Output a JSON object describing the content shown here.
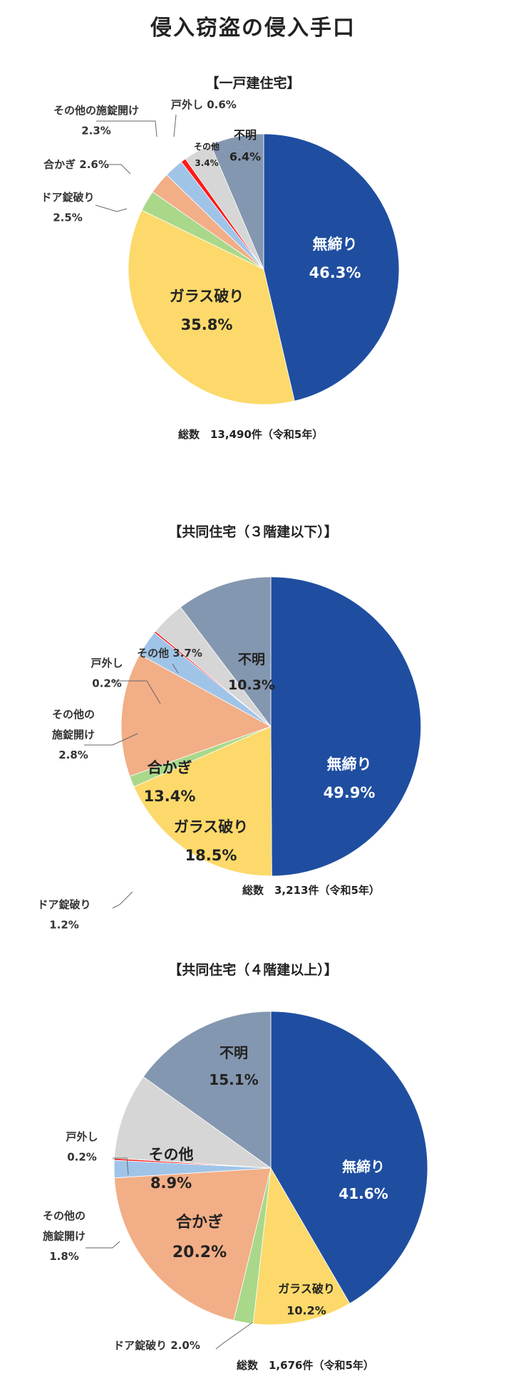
{
  "title": "侵入窃盗の侵入手口",
  "colors": {
    "無締り": "#1f4ea1",
    "ガラス破り": "#fcd96a",
    "ドア錠破り": "#a9d88a",
    "合かぎ": "#f2ae86",
    "その他の施錠開け": "#a0c4e8",
    "戸外し": "#ff1a1a",
    "その他": "#d6d6d6",
    "不明": "#8497b0"
  },
  "chart_data": [
    {
      "type": "pie",
      "title": "【一戸建住宅】",
      "total_label": "総数　13,490件（令和5年）",
      "slices": [
        {
          "name": "無締り",
          "value": 46.3
        },
        {
          "name": "ガラス破り",
          "value": 35.8
        },
        {
          "name": "ドア錠破り",
          "value": 2.5
        },
        {
          "name": "合かぎ",
          "value": 2.6
        },
        {
          "name": "その他の施錠開け",
          "value": 2.3
        },
        {
          "name": "戸外し",
          "value": 0.6
        },
        {
          "name": "その他",
          "value": 3.4
        },
        {
          "name": "不明",
          "value": 6.4
        }
      ],
      "labels": [
        {
          "lines": [
            "無締り",
            "46.3%"
          ]
        },
        {
          "lines": [
            "ガラス破り",
            "35.8%"
          ]
        },
        {
          "lines": [
            "ドア錠破り",
            "2.5%"
          ]
        },
        {
          "lines": [
            "合かぎ 2.6%"
          ]
        },
        {
          "lines": [
            "その他の施錠開け",
            "2.3%"
          ]
        },
        {
          "lines": [
            "戸外し 0.6%"
          ]
        },
        {
          "lines": [
            "その他",
            "3.4%"
          ]
        },
        {
          "lines": [
            "不明",
            "6.4%"
          ]
        }
      ]
    },
    {
      "type": "pie",
      "title": "【共同住宅（３階建以下）】",
      "total_label": "総数　3,213件（令和5年）",
      "slices": [
        {
          "name": "無締り",
          "value": 49.9
        },
        {
          "name": "ガラス破り",
          "value": 18.5
        },
        {
          "name": "ドア錠破り",
          "value": 1.2
        },
        {
          "name": "合かぎ",
          "value": 13.4
        },
        {
          "name": "その他の施錠開け",
          "value": 2.8
        },
        {
          "name": "戸外し",
          "value": 0.2
        },
        {
          "name": "その他",
          "value": 3.7
        },
        {
          "name": "不明",
          "value": 10.3
        }
      ],
      "labels": [
        {
          "lines": [
            "無締り",
            "49.9%"
          ]
        },
        {
          "lines": [
            "ガラス破り",
            "18.5%"
          ]
        },
        {
          "lines": [
            "ドア錠破り",
            "1.2%"
          ]
        },
        {
          "lines": [
            "合かぎ",
            "13.4%"
          ]
        },
        {
          "lines": [
            "その他の",
            "施錠開け",
            "2.8%"
          ]
        },
        {
          "lines": [
            "戸外し",
            "0.2%"
          ]
        },
        {
          "lines": [
            "その他 3.7%"
          ]
        },
        {
          "lines": [
            "不明",
            "10.3%"
          ]
        }
      ]
    },
    {
      "type": "pie",
      "title": "【共同住宅（４階建以上）】",
      "total_label": "総数　1,676件（令和5年）",
      "slices": [
        {
          "name": "無締り",
          "value": 41.6
        },
        {
          "name": "ガラス破り",
          "value": 10.2
        },
        {
          "name": "ドア錠破り",
          "value": 2.0
        },
        {
          "name": "合かぎ",
          "value": 20.2
        },
        {
          "name": "その他の施錠開け",
          "value": 1.8
        },
        {
          "name": "戸外し",
          "value": 0.2
        },
        {
          "name": "その他",
          "value": 8.9
        },
        {
          "name": "不明",
          "value": 15.1
        }
      ],
      "labels": [
        {
          "lines": [
            "無締り",
            "41.6%"
          ]
        },
        {
          "lines": [
            "ガラス破り",
            "10.2%"
          ]
        },
        {
          "lines": [
            "ドア錠破り 2.0%"
          ]
        },
        {
          "lines": [
            "合かぎ",
            "20.2%"
          ]
        },
        {
          "lines": [
            "その他の",
            "施錠開け",
            "1.8%"
          ]
        },
        {
          "lines": [
            "戸外し",
            "0.2%"
          ]
        },
        {
          "lines": [
            "その他",
            "8.9%"
          ]
        },
        {
          "lines": [
            "不明",
            "15.1%"
          ]
        }
      ]
    }
  ]
}
